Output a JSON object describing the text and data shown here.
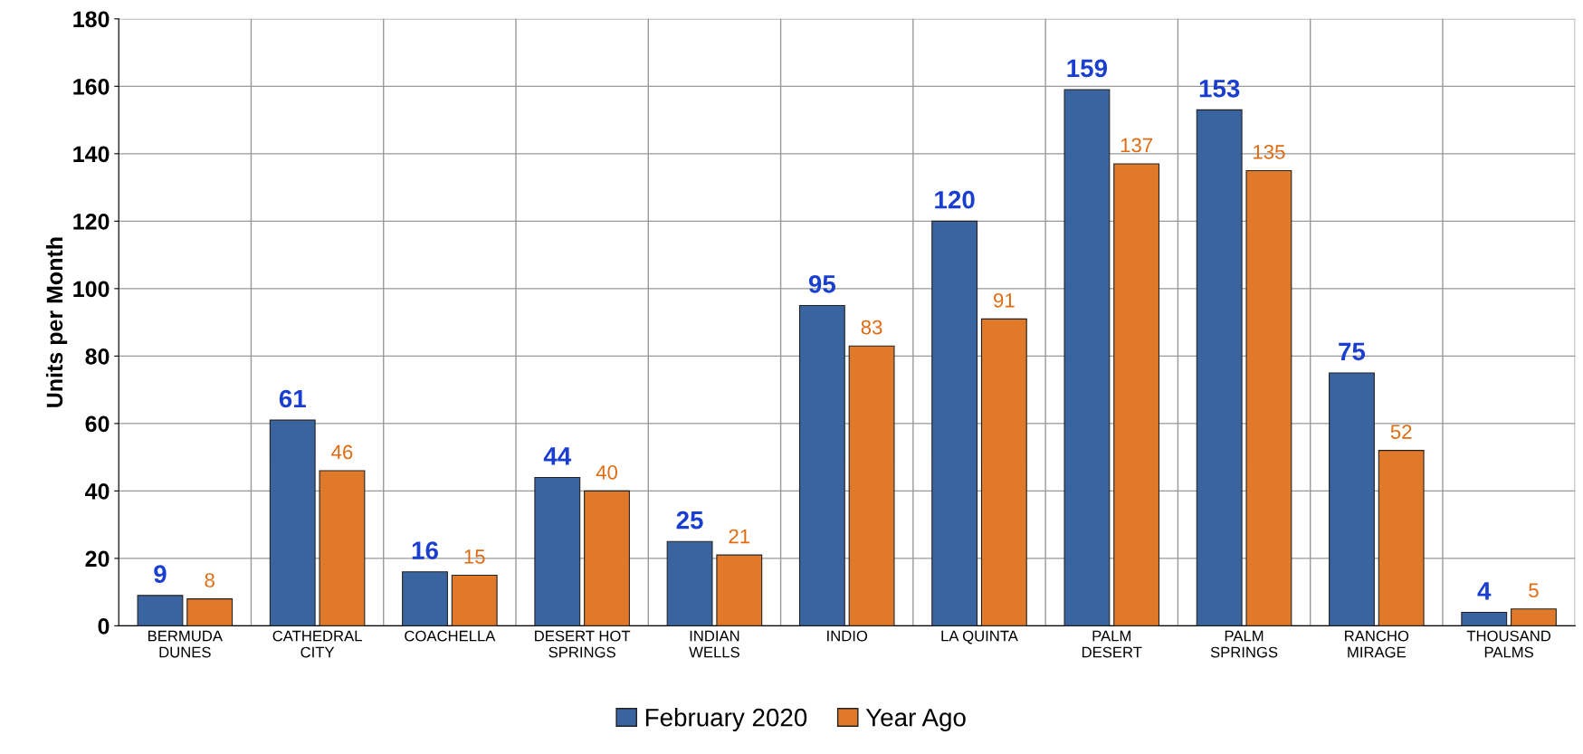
{
  "chart_data": {
    "type": "bar",
    "ylabel": "Units per Month",
    "categories": [
      "BERMUDA\nDUNES",
      "CATHEDRAL\nCITY",
      "COACHELLA",
      "DESERT HOT\nSPRINGS",
      "INDIAN\nWELLS",
      "INDIO",
      "LA QUINTA",
      "PALM\nDESERT",
      "PALM\nSPRINGS",
      "RANCHO\nMIRAGE",
      "THOUSAND\nPALMS"
    ],
    "series": [
      {
        "name": "February 2020",
        "color": "#3a64a0",
        "values": [
          9,
          61,
          16,
          44,
          25,
          95,
          120,
          159,
          153,
          75,
          4
        ]
      },
      {
        "name": "Year Ago",
        "color": "#e07a2a",
        "values": [
          8,
          46,
          15,
          40,
          21,
          83,
          91,
          137,
          135,
          52,
          5
        ]
      }
    ],
    "ylim": [
      0,
      180
    ],
    "yticks": [
      0,
      20,
      40,
      60,
      80,
      100,
      120,
      140,
      160,
      180
    ],
    "grid": true,
    "legend": "bottom",
    "data_labels": true
  }
}
